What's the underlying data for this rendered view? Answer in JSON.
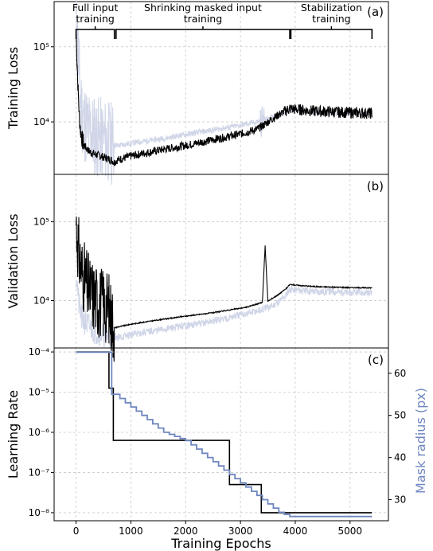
{
  "chart_data": [
    {
      "type": "line",
      "panel": "(a)",
      "ylabel": "Training Loss",
      "yscale": "log",
      "ylim": [
        2000,
        400000
      ],
      "xlim": [
        -400,
        5700
      ],
      "yticks": [
        {
          "v": 10000,
          "label": "10⁴"
        },
        {
          "v": 100000,
          "label": "10⁵"
        }
      ],
      "grid": true,
      "phases": [
        {
          "label1": "Full input",
          "label2": "training",
          "start": 0,
          "end": 700
        },
        {
          "label1": "Shrinking masked input",
          "label2": "training",
          "start": 730,
          "end": 3900
        },
        {
          "label1": "Stabilization",
          "label2": "training",
          "start": 3920,
          "end": 5400
        }
      ],
      "series": [
        {
          "color": "#d0d6e8",
          "x": [
            0,
            20,
            40,
            60,
            80,
            120,
            180,
            250,
            350,
            450,
            550,
            650,
            700,
            750,
            1000,
            1300,
            1600,
            1900,
            2200,
            2500,
            2800,
            3100,
            3300,
            3400,
            3500,
            3700,
            3900,
            4100,
            4300,
            4500,
            4800,
            5100,
            5400
          ],
          "y": [
            200000,
            150000,
            80000,
            40000,
            20000,
            12000,
            9000,
            7500,
            6500,
            6000,
            5600,
            5200,
            5000,
            4800,
            5200,
            5600,
            6000,
            6600,
            7200,
            7800,
            8500,
            9300,
            10000,
            10500,
            11000,
            12500,
            14500,
            14000,
            13500,
            13500,
            13200,
            13000,
            12800
          ]
        },
        {
          "color": "#000000",
          "x": [
            0,
            20,
            40,
            60,
            80,
            120,
            180,
            250,
            350,
            450,
            550,
            650,
            700,
            750,
            1000,
            1300,
            1600,
            1900,
            2200,
            2500,
            2800,
            3100,
            3300,
            3400,
            3500,
            3700,
            3900,
            4100,
            4300,
            4500,
            4800,
            5100,
            5400
          ],
          "y": [
            150000,
            60000,
            25000,
            12000,
            8000,
            5500,
            4500,
            4000,
            3700,
            3500,
            3300,
            3100,
            2900,
            3100,
            3500,
            3900,
            4300,
            4700,
            5200,
            5800,
            6400,
            7200,
            8000,
            8800,
            10000,
            12500,
            15000,
            14500,
            14000,
            13800,
            13500,
            13200,
            13000
          ]
        }
      ]
    },
    {
      "type": "line",
      "panel": "(b)",
      "ylabel": "Validation Loss",
      "yscale": "log",
      "ylim": [
        2500,
        400000
      ],
      "xlim": [
        -400,
        5700
      ],
      "yticks": [
        {
          "v": 10000,
          "label": "10⁴"
        },
        {
          "v": 100000,
          "label": "10⁵"
        }
      ],
      "grid": true,
      "series": [
        {
          "color": "#d0d6e8",
          "x": [
            0,
            50,
            100,
            200,
            300,
            400,
            500,
            600,
            700,
            800,
            1000,
            1300,
            1600,
            1900,
            2200,
            2500,
            2800,
            3100,
            3400,
            3600,
            3800,
            3900,
            4100,
            4400,
            4700,
            5000,
            5400
          ],
          "y": [
            25000,
            9000,
            6000,
            5000,
            4300,
            4000,
            3800,
            3600,
            3500,
            3400,
            3700,
            4000,
            4300,
            4700,
            5000,
            5500,
            6100,
            6800,
            7600,
            8700,
            11000,
            14000,
            13500,
            13000,
            13000,
            12500,
            12500
          ]
        },
        {
          "color": "#000000",
          "x": [
            0,
            50,
            100,
            200,
            300,
            400,
            500,
            600,
            650,
            700,
            750,
            1000,
            1300,
            1600,
            1900,
            2200,
            2500,
            2800,
            3100,
            3300,
            3400,
            3450,
            3500,
            3700,
            3850,
            3900,
            4100,
            4400,
            4700,
            5000,
            5400
          ],
          "y": [
            100000,
            40000,
            25000,
            15000,
            12000,
            10000,
            9000,
            8000,
            6000,
            4500,
            4600,
            5000,
            5400,
            5800,
            6200,
            6600,
            7000,
            7600,
            8200,
            9000,
            9500,
            50000,
            9800,
            12000,
            14500,
            16000,
            15500,
            15000,
            14800,
            14600,
            14500
          ]
        }
      ]
    },
    {
      "type": "line",
      "panel": "(c)",
      "xlabel": "Training Epochs",
      "ylabel": "Learning Rate",
      "ylabel_right": "Mask radius (px)",
      "yscale": "log",
      "ylim": [
        7e-09,
        1.5e-07
      ],
      "ylim_left_exp": [
        -8.2,
        -3.9
      ],
      "xlim": [
        -400,
        5700
      ],
      "yticks": [
        {
          "v": -4,
          "label": "10⁻⁴"
        },
        {
          "v": -5,
          "label": "10⁻⁵"
        },
        {
          "v": -6,
          "label": "10⁻⁶"
        },
        {
          "v": -7,
          "label": "10⁻⁷"
        },
        {
          "v": -8,
          "label": "10⁻⁸"
        }
      ],
      "xticks": [
        0,
        1000,
        2000,
        3000,
        4000,
        5000
      ],
      "right_ylim": [
        25,
        66
      ],
      "right_yticks": [
        30,
        40,
        50,
        60
      ],
      "grid": true,
      "series": [
        {
          "axis": "left",
          "color": "#000000",
          "x": [
            0,
            600,
            600,
            680,
            680,
            2800,
            2800,
            3380,
            3380,
            5400
          ],
          "y_exp": [
            -4,
            -4,
            -4.9,
            -4.9,
            -6.2,
            -6.2,
            -7.3,
            -7.3,
            -8,
            -8
          ]
        },
        {
          "axis": "right",
          "color": "#6f86c0",
          "x": [
            0,
            650,
            650,
            700,
            800,
            900,
            1000,
            1100,
            1200,
            1300,
            1400,
            1500,
            1600,
            1700,
            1800,
            1900,
            2000,
            2100,
            2200,
            2300,
            2400,
            2500,
            2600,
            2700,
            2800,
            2900,
            3000,
            3100,
            3200,
            3300,
            3400,
            3500,
            3600,
            3700,
            3800,
            3900,
            5400
          ],
          "y": [
            65,
            65,
            55,
            55,
            54,
            53,
            52,
            51,
            50,
            49,
            48,
            47,
            46,
            45.5,
            45,
            44.5,
            44,
            43,
            42,
            41,
            40,
            39,
            38,
            37,
            36,
            35,
            34,
            33,
            32,
            31,
            30,
            29,
            28,
            27,
            26.5,
            26,
            26
          ]
        }
      ]
    }
  ]
}
